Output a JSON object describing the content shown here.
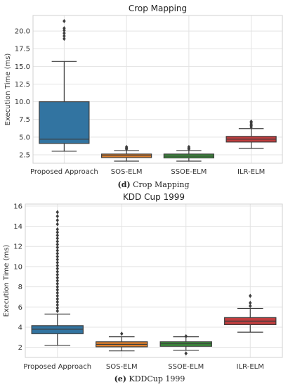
{
  "chart_data": [
    {
      "type": "boxplot",
      "title": "Crop Mapping",
      "ylabel": "Execution Time (ms)",
      "xlabel": "",
      "categories": [
        "Proposed Approach",
        "SOS-ELM",
        "SSOE-ELM",
        "ILR-ELM"
      ],
      "colors": [
        "#3274a1",
        "#e1812c",
        "#3a923a",
        "#c03d3e"
      ],
      "ylim": [
        1.3,
        22.2
      ],
      "yticks": [
        2.5,
        5.0,
        7.5,
        10.0,
        12.5,
        15.0,
        17.5,
        20.0
      ],
      "ytick_labels": [
        "2.5",
        "5.0",
        "7.5",
        "10.0",
        "12.5",
        "15.0",
        "17.5",
        "20.0"
      ],
      "grid": true,
      "boxes": [
        {
          "whislo": 3.0,
          "q1": 4.1,
          "med": 4.7,
          "q3": 10.0,
          "whishi": 15.7,
          "fliers": [
            18.9,
            19.3,
            19.7,
            20.1,
            20.4,
            21.4
          ]
        },
        {
          "whislo": 1.6,
          "q1": 2.1,
          "med": 2.35,
          "q3": 2.6,
          "whishi": 3.1,
          "fliers": [
            3.3,
            3.45,
            3.6
          ]
        },
        {
          "whislo": 1.6,
          "q1": 2.05,
          "med": 2.3,
          "q3": 2.6,
          "whishi": 3.1,
          "fliers": [
            3.3,
            3.45,
            3.6
          ]
        },
        {
          "whislo": 3.4,
          "q1": 4.3,
          "med": 4.7,
          "q3": 5.1,
          "whishi": 6.2,
          "fliers": [
            6.4,
            6.6,
            6.8,
            7.0,
            7.2
          ]
        }
      ],
      "caption_bold": "(d)",
      "caption_text": " Crop Mapping"
    },
    {
      "type": "boxplot",
      "title": "KDD Cup 1999",
      "ylabel": "Execution Time (ms)",
      "xlabel": "",
      "categories": [
        "Proposed Approach",
        "SOS-ELM",
        "SSOE-ELM",
        "ILR-ELM"
      ],
      "colors": [
        "#3274a1",
        "#e1812c",
        "#3a923a",
        "#c03d3e"
      ],
      "ylim": [
        1.0,
        16.2
      ],
      "yticks": [
        2,
        4,
        6,
        8,
        10,
        12,
        14,
        16
      ],
      "ytick_labels": [
        "2",
        "4",
        "6",
        "8",
        "10",
        "12",
        "14",
        "16"
      ],
      "grid": true,
      "boxes": [
        {
          "whislo": 2.2,
          "q1": 3.35,
          "med": 3.8,
          "q3": 4.15,
          "whishi": 5.3,
          "fliers": [
            5.6,
            5.9,
            6.2,
            6.5,
            6.8,
            7.1,
            7.4,
            7.7,
            8.0,
            8.3,
            8.6,
            8.9,
            9.2,
            9.5,
            9.8,
            10.1,
            10.4,
            10.7,
            11.0,
            11.3,
            11.6,
            11.9,
            12.2,
            12.5,
            12.8,
            13.1,
            13.4,
            13.7,
            14.2,
            14.6,
            15.0,
            15.4
          ]
        },
        {
          "whislo": 1.65,
          "q1": 2.05,
          "med": 2.3,
          "q3": 2.55,
          "whishi": 3.05,
          "fliers": [
            3.35
          ]
        },
        {
          "whislo": 1.7,
          "q1": 2.1,
          "med": 2.35,
          "q3": 2.55,
          "whishi": 3.05,
          "fliers": [
            1.4,
            3.1
          ]
        },
        {
          "whislo": 3.5,
          "q1": 4.25,
          "med": 4.6,
          "q3": 4.95,
          "whishi": 5.85,
          "fliers": [
            6.1,
            6.4,
            7.1
          ]
        }
      ],
      "caption_bold": "(e)",
      "caption_text": " KDDCup 1999"
    }
  ]
}
